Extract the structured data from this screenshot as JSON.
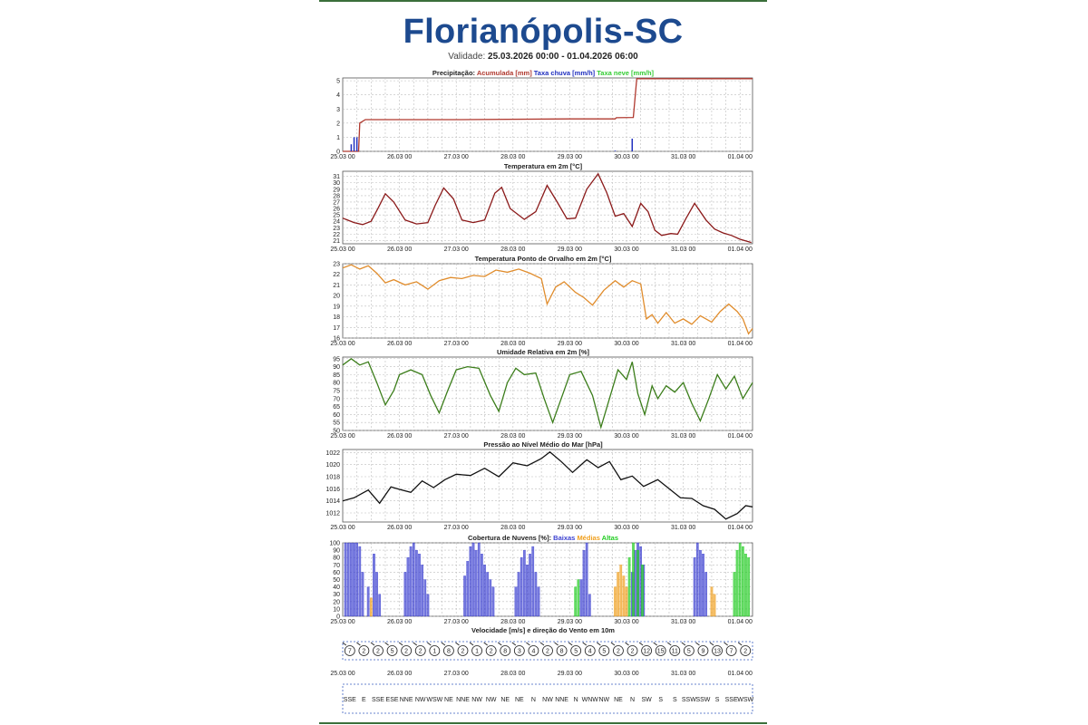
{
  "page": {
    "title": "Florianópolis-SC",
    "validity_label": "Validade:",
    "validity_range": "25.03.2026 00:00 - 01.04.2026 06:00"
  },
  "colors": {
    "title": "#1d4a8f",
    "precip_accum": "#b0392f",
    "precip_rain": "#1f2fbf",
    "precip_snow": "#33cc33",
    "temperature": "#8b1a1a",
    "dewpoint": "#e08c2c",
    "humidity": "#3b7d1a",
    "pressure": "#111111",
    "cloud_low": "#3a3fd0",
    "cloud_mid": "#f0a020",
    "cloud_high": "#22cc22"
  },
  "x_ticks": [
    "25.03 00",
    "26.03 00",
    "27.03 00",
    "28.03 00",
    "29.03 00",
    "30.03 00",
    "31.03 00",
    "01.04 00"
  ],
  "chart_data": [
    {
      "type": "line",
      "title_parts": [
        {
          "text": "Precipitação: ",
          "color": "#222222"
        },
        {
          "text": "Acumulada [mm] ",
          "color": "#b0392f"
        },
        {
          "text": "Taxa chuva [mm/h] ",
          "color": "#1f2fbf"
        },
        {
          "text": "Taxa neve [mm/h]",
          "color": "#33cc33"
        }
      ],
      "ylim": [
        0,
        5.2
      ],
      "yticks": [
        0,
        1,
        2,
        3,
        4,
        5
      ],
      "series": [
        {
          "name": "Acumulada [mm]",
          "kind": "line",
          "x": [
            0,
            0.28,
            0.3,
            0.4,
            2,
            4,
            4.8,
            4.82,
            5.12,
            5.18,
            6,
            7.22
          ],
          "y": [
            0,
            0,
            2.0,
            2.25,
            2.25,
            2.3,
            2.3,
            2.38,
            2.4,
            5.15,
            5.15,
            5.15
          ]
        },
        {
          "name": "Taxa chuva [mm/h]",
          "kind": "bars",
          "x": [
            0.15,
            0.2,
            0.25,
            5.1,
            4.8
          ],
          "y": [
            0.5,
            1.0,
            1.0,
            0.9,
            0.05
          ]
        }
      ]
    },
    {
      "type": "line",
      "title": "Temperatura em 2m [°C]",
      "ylim": [
        20.5,
        31.8
      ],
      "yticks": [
        21,
        22,
        23,
        24,
        25,
        26,
        27,
        28,
        29,
        30,
        31
      ],
      "series": [
        {
          "name": "Temperatura em 2m",
          "kind": "line",
          "x": [
            0,
            0.2,
            0.35,
            0.5,
            0.62,
            0.75,
            0.9,
            1.1,
            1.3,
            1.5,
            1.63,
            1.78,
            1.95,
            2.1,
            2.3,
            2.5,
            2.68,
            2.8,
            2.95,
            3.2,
            3.4,
            3.6,
            3.78,
            3.95,
            4.1,
            4.3,
            4.5,
            4.65,
            4.8,
            4.95,
            5.1,
            5.25,
            5.38,
            5.5,
            5.62,
            5.78,
            5.9,
            6.05,
            6.2,
            6.4,
            6.55,
            6.7,
            6.85,
            7.0,
            7.2
          ],
          "y": [
            24.5,
            23.8,
            23.5,
            24.0,
            26.0,
            28.3,
            27.0,
            24.2,
            23.6,
            23.8,
            26.5,
            29.2,
            27.5,
            24.2,
            23.8,
            24.2,
            28.4,
            29.3,
            26.0,
            24.3,
            25.5,
            29.6,
            27.0,
            24.4,
            24.5,
            29.0,
            31.4,
            28.5,
            24.8,
            25.2,
            23.2,
            26.8,
            25.5,
            22.6,
            21.8,
            22.1,
            22.0,
            24.5,
            26.8,
            24.2,
            22.8,
            22.2,
            21.8,
            21.2,
            20.7
          ]
        }
      ]
    },
    {
      "type": "line",
      "title": "Temperatura Ponto de Orvalho em 2m [°C]",
      "ylim": [
        16,
        23
      ],
      "yticks": [
        16,
        17,
        18,
        19,
        20,
        21,
        22,
        23
      ],
      "series": [
        {
          "name": "Temperatura Ponto de Orvalho em 2m",
          "kind": "line",
          "x": [
            0,
            0.15,
            0.3,
            0.45,
            0.6,
            0.75,
            0.9,
            1.1,
            1.3,
            1.5,
            1.7,
            1.9,
            2.1,
            2.3,
            2.5,
            2.7,
            2.9,
            3.1,
            3.3,
            3.5,
            3.6,
            3.75,
            3.9,
            4.1,
            4.25,
            4.4,
            4.6,
            4.8,
            4.95,
            5.1,
            5.25,
            5.35,
            5.45,
            5.55,
            5.7,
            5.85,
            6.0,
            6.15,
            6.3,
            6.5,
            6.65,
            6.8,
            6.95,
            7.05,
            7.15,
            7.22
          ],
          "y": [
            22.6,
            22.9,
            22.5,
            22.8,
            22.1,
            21.2,
            21.5,
            21.0,
            21.3,
            20.6,
            21.4,
            21.7,
            21.6,
            21.9,
            21.8,
            22.4,
            22.2,
            22.5,
            22.1,
            21.6,
            19.2,
            20.8,
            21.3,
            20.3,
            19.8,
            19.1,
            20.5,
            21.4,
            20.8,
            21.4,
            21.1,
            17.8,
            18.2,
            17.4,
            18.4,
            17.4,
            17.8,
            17.3,
            18.1,
            17.5,
            18.5,
            19.2,
            18.5,
            17.8,
            16.4,
            16.9
          ]
        }
      ]
    },
    {
      "type": "line",
      "title": "Umidade Relativa em 2m [%]",
      "ylim": [
        50,
        96
      ],
      "yticks": [
        50,
        55,
        60,
        65,
        70,
        75,
        80,
        85,
        90,
        95
      ],
      "series": [
        {
          "name": "Umidade Relativa em 2m",
          "kind": "line",
          "x": [
            0,
            0.15,
            0.3,
            0.45,
            0.6,
            0.75,
            0.9,
            1.0,
            1.2,
            1.4,
            1.55,
            1.7,
            1.85,
            2.0,
            2.2,
            2.4,
            2.6,
            2.75,
            2.9,
            3.05,
            3.2,
            3.4,
            3.55,
            3.7,
            3.85,
            4.0,
            4.2,
            4.4,
            4.55,
            4.7,
            4.85,
            5.0,
            5.1,
            5.2,
            5.32,
            5.45,
            5.55,
            5.7,
            5.85,
            6.0,
            6.15,
            6.3,
            6.45,
            6.6,
            6.75,
            6.9,
            7.05,
            7.22
          ],
          "y": [
            91,
            95,
            91,
            93,
            80,
            66,
            75,
            85,
            88,
            85,
            72,
            61,
            75,
            88,
            90,
            89,
            72,
            62,
            80,
            89,
            85,
            86,
            70,
            55,
            70,
            85,
            87,
            72,
            52,
            70,
            88,
            82,
            93,
            73,
            60,
            78,
            70,
            78,
            74,
            80,
            67,
            56,
            70,
            85,
            76,
            84,
            70,
            80
          ]
        }
      ]
    },
    {
      "type": "line",
      "title": "Pressão ao Nível Médio do Mar [hPa]",
      "ylim": [
        1010.5,
        1022.5
      ],
      "yticks": [
        1012,
        1014,
        1016,
        1018,
        1020,
        1022
      ],
      "series": [
        {
          "name": "Pressão ao Nível Médio do Mar",
          "kind": "line",
          "x": [
            0,
            0.2,
            0.45,
            0.65,
            0.85,
            1.0,
            1.2,
            1.4,
            1.6,
            1.8,
            2.0,
            2.25,
            2.5,
            2.75,
            3.0,
            3.25,
            3.5,
            3.65,
            3.85,
            4.05,
            4.3,
            4.5,
            4.7,
            4.9,
            5.1,
            5.3,
            5.55,
            5.75,
            5.95,
            6.15,
            6.35,
            6.55,
            6.75,
            6.95,
            7.1,
            7.22
          ],
          "y": [
            1014.0,
            1014.5,
            1015.8,
            1013.6,
            1016.3,
            1015.9,
            1015.4,
            1017.3,
            1016.2,
            1017.5,
            1018.4,
            1018.2,
            1019.4,
            1018.0,
            1020.3,
            1019.8,
            1021.0,
            1022.1,
            1020.5,
            1018.7,
            1020.8,
            1019.5,
            1020.5,
            1017.5,
            1018.1,
            1016.4,
            1017.5,
            1016.0,
            1014.5,
            1014.4,
            1013.2,
            1012.6,
            1011.0,
            1011.9,
            1013.2,
            1013.0
          ]
        }
      ]
    },
    {
      "type": "bar",
      "title_parts": [
        {
          "text": "Cobertura de Nuvens [%]: ",
          "color": "#222222"
        },
        {
          "text": "Baixas ",
          "color": "#3a3fd0"
        },
        {
          "text": "Médias ",
          "color": "#f0a020"
        },
        {
          "text": "Altas",
          "color": "#22cc22"
        }
      ],
      "ylim": [
        0,
        100
      ],
      "yticks": [
        0,
        10,
        20,
        30,
        40,
        50,
        60,
        70,
        80,
        90,
        100
      ],
      "series": [
        {
          "name": "Baixas",
          "kind": "bars",
          "x": [
            0.05,
            0.1,
            0.15,
            0.2,
            0.25,
            0.3,
            0.35,
            0.45,
            0.55,
            0.6,
            0.65,
            1.1,
            1.15,
            1.2,
            1.25,
            1.3,
            1.35,
            1.4,
            1.45,
            1.5,
            2.15,
            2.2,
            2.25,
            2.3,
            2.35,
            2.4,
            2.45,
            2.5,
            2.55,
            2.6,
            2.65,
            3.05,
            3.1,
            3.15,
            3.2,
            3.25,
            3.3,
            3.35,
            3.4,
            3.45,
            4.2,
            4.25,
            4.3,
            4.35,
            5.1,
            5.15,
            5.2,
            5.25,
            5.3,
            6.2,
            6.25,
            6.3,
            6.35,
            6.4
          ],
          "y": [
            100,
            100,
            100,
            100,
            100,
            95,
            60,
            40,
            85,
            60,
            30,
            60,
            80,
            95,
            100,
            90,
            85,
            70,
            50,
            30,
            55,
            75,
            95,
            100,
            90,
            100,
            85,
            70,
            60,
            50,
            40,
            40,
            60,
            80,
            90,
            70,
            85,
            95,
            60,
            40,
            50,
            90,
            100,
            30,
            60,
            90,
            100,
            95,
            70,
            80,
            100,
            90,
            85,
            60
          ]
        },
        {
          "name": "Médias",
          "kind": "bars",
          "x": [
            0.5,
            4.8,
            4.85,
            4.9,
            4.95,
            5.0,
            6.5,
            6.55
          ],
          "y": [
            25,
            40,
            60,
            70,
            55,
            40,
            40,
            30
          ]
        },
        {
          "name": "Altas",
          "kind": "bars",
          "x": [
            4.1,
            4.15,
            5.05,
            5.12,
            5.2,
            5.28,
            6.9,
            6.95,
            7.0,
            7.05,
            7.1,
            7.15
          ],
          "y": [
            40,
            50,
            80,
            100,
            90,
            70,
            60,
            90,
            100,
            95,
            85,
            80
          ]
        }
      ]
    },
    {
      "type": "scatter",
      "title": "Velocidade [m/s] e direção do Vento em 10m",
      "speeds": [
        "7",
        "2",
        "2",
        "5",
        "2",
        "2",
        "1",
        "8",
        "2",
        "1",
        "2",
        "8",
        "3",
        "4",
        "2",
        "8",
        "5",
        "4",
        "5",
        "2",
        "2",
        "12",
        "15",
        "11",
        "5",
        "9",
        "13",
        "7",
        "2"
      ],
      "directions": [
        "SSE",
        "E",
        "SSE",
        "ESE",
        "NNE",
        "NW",
        "WSW",
        "NE",
        "NNE",
        "NW",
        "NW",
        "NE",
        "NE",
        "N",
        "NW",
        "NNE",
        "N",
        "WNW",
        "NW",
        "NE",
        "N",
        "SW",
        "S",
        "S",
        "SSW",
        "SSW",
        "S",
        "SSE",
        "WSW"
      ]
    }
  ]
}
